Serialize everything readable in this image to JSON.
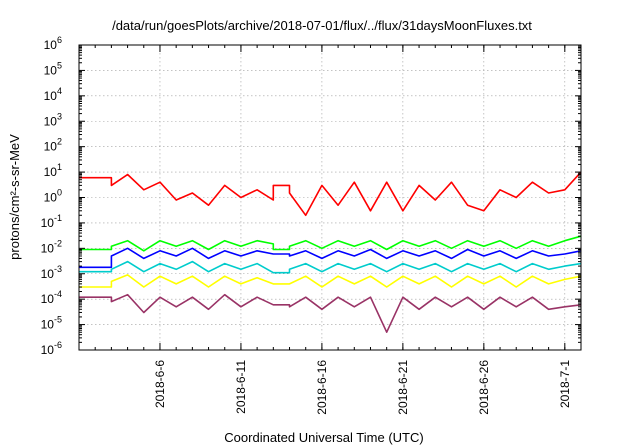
{
  "chart_data": {
    "type": "line",
    "title": "/data/run/goesPlots/archive/2018-07-01/flux/../flux/31daysMoonFluxes.txt",
    "xlabel": "Coordinated Universal Time (UTC)",
    "ylabel": "protons/cm²-s-sr-MeV",
    "y_scale": "log",
    "ylim": [
      1e-06,
      1000000.0
    ],
    "xlim": [
      "2018-06-01",
      "2018-07-02"
    ],
    "x_ticks": [
      "2018-6-6",
      "2018-6-11",
      "2018-6-16",
      "2018-6-21",
      "2018-6-26",
      "2018-7-1"
    ],
    "y_ticks": [
      {
        "base": "10",
        "exp": "-6"
      },
      {
        "base": "10",
        "exp": "-5"
      },
      {
        "base": "10",
        "exp": "-4"
      },
      {
        "base": "10",
        "exp": "-3"
      },
      {
        "base": "10",
        "exp": "-2"
      },
      {
        "base": "10",
        "exp": "-1"
      },
      {
        "base": "10",
        "exp": "0"
      },
      {
        "base": "10",
        "exp": "1"
      },
      {
        "base": "10",
        "exp": "2"
      },
      {
        "base": "10",
        "exp": "3"
      },
      {
        "base": "10",
        "exp": "4"
      },
      {
        "base": "10",
        "exp": "5"
      },
      {
        "base": "10",
        "exp": "6"
      }
    ],
    "grid": true,
    "legend": "none",
    "series": [
      {
        "color": "#ff0000",
        "x": [
          "2018-06-01",
          "2018-06-03",
          "2018-06-03",
          "2018-06-04",
          "2018-06-05",
          "2018-06-06",
          "2018-06-07",
          "2018-06-08",
          "2018-06-09",
          "2018-06-10",
          "2018-06-11",
          "2018-06-12",
          "2018-06-13",
          "2018-06-13",
          "2018-06-14",
          "2018-06-14",
          "2018-06-15",
          "2018-06-16",
          "2018-06-17",
          "2018-06-18",
          "2018-06-19",
          "2018-06-20",
          "2018-06-21",
          "2018-06-22",
          "2018-06-23",
          "2018-06-24",
          "2018-06-25",
          "2018-06-26",
          "2018-06-27",
          "2018-06-28",
          "2018-06-29",
          "2018-06-30",
          "2018-07-01",
          "2018-07-02"
        ],
        "y": [
          6,
          6,
          3,
          8,
          2,
          4,
          0.8,
          1.5,
          0.5,
          3,
          1,
          2,
          0.8,
          3,
          3,
          1.5,
          0.2,
          3,
          0.5,
          4,
          0.3,
          4,
          0.3,
          3,
          0.8,
          4,
          0.5,
          0.3,
          2,
          1,
          4,
          1.5,
          2,
          10
        ]
      },
      {
        "color": "#00ff00",
        "x": [
          "2018-06-01",
          "2018-06-03",
          "2018-06-03",
          "2018-06-04",
          "2018-06-05",
          "2018-06-06",
          "2018-06-07",
          "2018-06-08",
          "2018-06-09",
          "2018-06-10",
          "2018-06-11",
          "2018-06-12",
          "2018-06-13",
          "2018-06-13",
          "2018-06-14",
          "2018-06-14",
          "2018-06-15",
          "2018-06-16",
          "2018-06-17",
          "2018-06-18",
          "2018-06-19",
          "2018-06-20",
          "2018-06-21",
          "2018-06-22",
          "2018-06-23",
          "2018-06-24",
          "2018-06-25",
          "2018-06-26",
          "2018-06-27",
          "2018-06-28",
          "2018-06-29",
          "2018-06-30",
          "2018-07-01",
          "2018-07-02"
        ],
        "y": [
          0.009,
          0.009,
          0.012,
          0.02,
          0.008,
          0.02,
          0.012,
          0.02,
          0.009,
          0.02,
          0.012,
          0.02,
          0.015,
          0.009,
          0.009,
          0.012,
          0.02,
          0.01,
          0.02,
          0.012,
          0.02,
          0.009,
          0.02,
          0.012,
          0.02,
          0.01,
          0.02,
          0.012,
          0.02,
          0.01,
          0.02,
          0.012,
          0.02,
          0.03
        ]
      },
      {
        "color": "#0000ff",
        "x": [
          "2018-06-01",
          "2018-06-03",
          "2018-06-03",
          "2018-06-04",
          "2018-06-05",
          "2018-06-06",
          "2018-06-07",
          "2018-06-08",
          "2018-06-09",
          "2018-06-10",
          "2018-06-11",
          "2018-06-12",
          "2018-06-13",
          "2018-06-13",
          "2018-06-14",
          "2018-06-14",
          "2018-06-15",
          "2018-06-16",
          "2018-06-17",
          "2018-06-18",
          "2018-06-19",
          "2018-06-20",
          "2018-06-21",
          "2018-06-22",
          "2018-06-23",
          "2018-06-24",
          "2018-06-25",
          "2018-06-26",
          "2018-06-27",
          "2018-06-28",
          "2018-06-29",
          "2018-06-30",
          "2018-07-01",
          "2018-07-02"
        ],
        "y": [
          0.0018,
          0.0018,
          0.005,
          0.01,
          0.004,
          0.008,
          0.005,
          0.01,
          0.004,
          0.008,
          0.005,
          0.008,
          0.006,
          0.006,
          0.006,
          0.005,
          0.008,
          0.004,
          0.008,
          0.005,
          0.009,
          0.004,
          0.008,
          0.005,
          0.008,
          0.004,
          0.009,
          0.005,
          0.008,
          0.004,
          0.008,
          0.005,
          0.006,
          0.008
        ]
      },
      {
        "color": "#00cccc",
        "x": [
          "2018-06-01",
          "2018-06-03",
          "2018-06-03",
          "2018-06-04",
          "2018-06-05",
          "2018-06-06",
          "2018-06-07",
          "2018-06-08",
          "2018-06-09",
          "2018-06-10",
          "2018-06-11",
          "2018-06-12",
          "2018-06-13",
          "2018-06-13",
          "2018-06-14",
          "2018-06-14",
          "2018-06-15",
          "2018-06-16",
          "2018-06-17",
          "2018-06-18",
          "2018-06-19",
          "2018-06-20",
          "2018-06-21",
          "2018-06-22",
          "2018-06-23",
          "2018-06-24",
          "2018-06-25",
          "2018-06-26",
          "2018-06-27",
          "2018-06-28",
          "2018-06-29",
          "2018-06-30",
          "2018-07-01",
          "2018-07-02"
        ],
        "y": [
          0.0012,
          0.0012,
          0.0015,
          0.003,
          0.0012,
          0.0025,
          0.0015,
          0.003,
          0.0012,
          0.0025,
          0.0015,
          0.0025,
          0.0011,
          0.0011,
          0.0011,
          0.0015,
          0.0025,
          0.0012,
          0.0025,
          0.0015,
          0.0025,
          0.0012,
          0.0025,
          0.0015,
          0.0025,
          0.0012,
          0.0025,
          0.0015,
          0.0025,
          0.0012,
          0.0025,
          0.0015,
          0.002,
          0.0025
        ]
      },
      {
        "color": "#ffff00",
        "x": [
          "2018-06-01",
          "2018-06-03",
          "2018-06-03",
          "2018-06-04",
          "2018-06-05",
          "2018-06-06",
          "2018-06-07",
          "2018-06-08",
          "2018-06-09",
          "2018-06-10",
          "2018-06-11",
          "2018-06-12",
          "2018-06-13",
          "2018-06-13",
          "2018-06-14",
          "2018-06-14",
          "2018-06-15",
          "2018-06-16",
          "2018-06-17",
          "2018-06-18",
          "2018-06-19",
          "2018-06-20",
          "2018-06-21",
          "2018-06-22",
          "2018-06-23",
          "2018-06-24",
          "2018-06-25",
          "2018-06-26",
          "2018-06-27",
          "2018-06-28",
          "2018-06-29",
          "2018-06-30",
          "2018-07-01",
          "2018-07-02"
        ],
        "y": [
          0.0003,
          0.0003,
          0.0005,
          0.0009,
          0.0003,
          0.0008,
          0.0004,
          0.0008,
          0.0003,
          0.0008,
          0.0004,
          0.0007,
          0.0004,
          0.0004,
          0.0004,
          0.0004,
          0.0008,
          0.0003,
          0.0008,
          0.0004,
          0.0008,
          0.0003,
          0.0008,
          0.0004,
          0.0008,
          0.0003,
          0.0008,
          0.0004,
          0.0008,
          0.0003,
          0.0008,
          0.0004,
          0.0006,
          0.0008
        ]
      },
      {
        "color": "#993366",
        "x": [
          "2018-06-01",
          "2018-06-03",
          "2018-06-03",
          "2018-06-04",
          "2018-06-05",
          "2018-06-06",
          "2018-06-07",
          "2018-06-08",
          "2018-06-09",
          "2018-06-10",
          "2018-06-11",
          "2018-06-12",
          "2018-06-13",
          "2018-06-13",
          "2018-06-14",
          "2018-06-14",
          "2018-06-15",
          "2018-06-16",
          "2018-06-17",
          "2018-06-18",
          "2018-06-19",
          "2018-06-20",
          "2018-06-21",
          "2018-06-22",
          "2018-06-23",
          "2018-06-24",
          "2018-06-25",
          "2018-06-26",
          "2018-06-27",
          "2018-06-28",
          "2018-06-29",
          "2018-06-30",
          "2018-07-01",
          "2018-07-02"
        ],
        "y": [
          0.00012,
          0.00012,
          8e-05,
          0.00015,
          3e-05,
          0.00012,
          5e-05,
          0.00012,
          4e-05,
          0.00015,
          5e-05,
          0.00012,
          6e-05,
          6e-05,
          6e-05,
          5e-05,
          0.00012,
          4e-05,
          0.00012,
          5e-05,
          0.00012,
          5e-06,
          0.00012,
          4e-05,
          0.00012,
          5e-05,
          0.00012,
          4e-05,
          0.00012,
          5e-05,
          0.00012,
          4e-05,
          5e-05,
          6e-05
        ]
      }
    ]
  }
}
